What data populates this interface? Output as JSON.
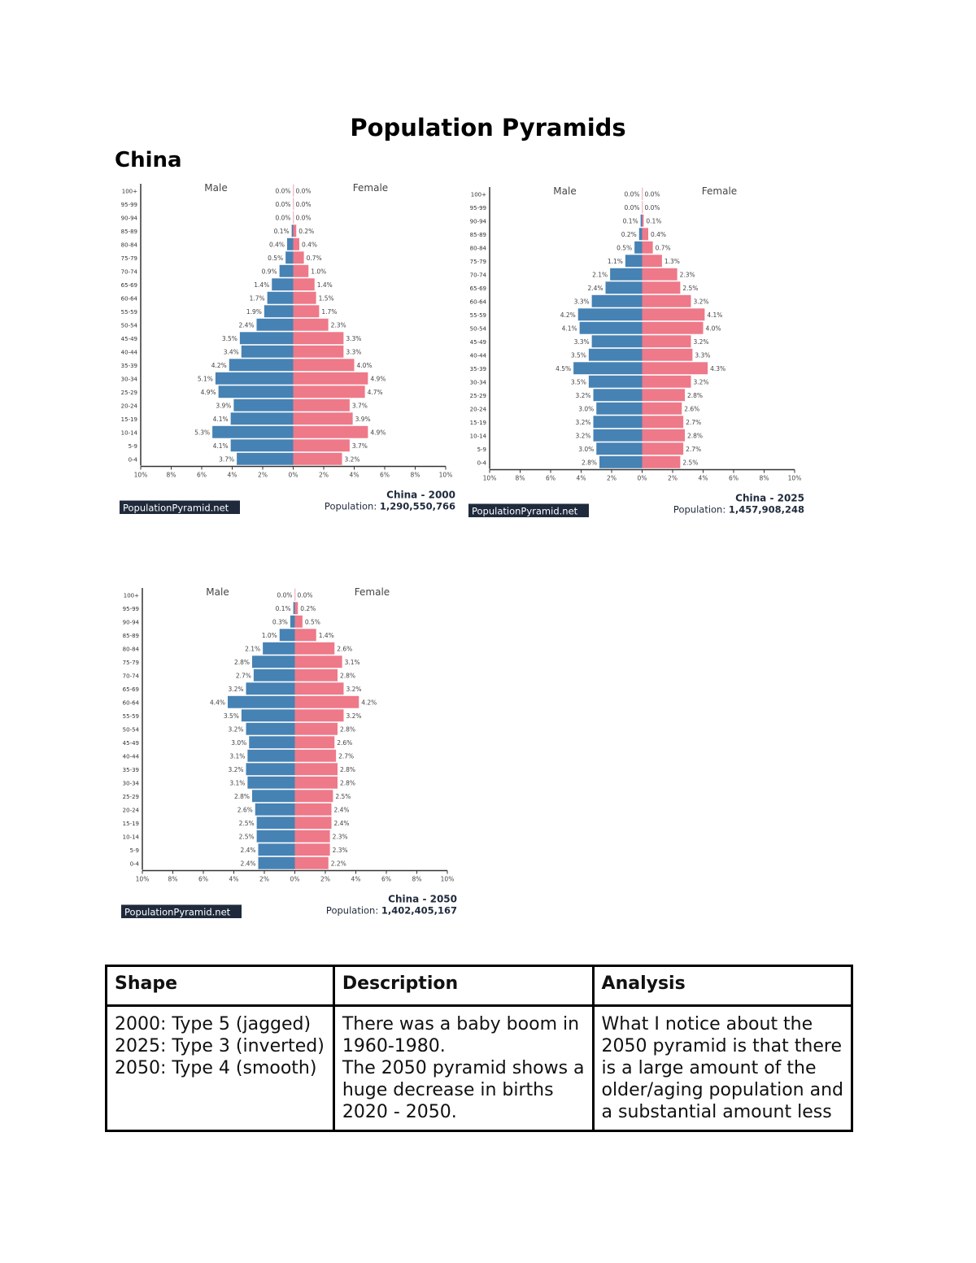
{
  "title": "Population Pyramids",
  "country": "China",
  "colors": {
    "male": "#4682b4",
    "female": "#ee7989",
    "logo_bg": "#1f2a3c"
  },
  "chart_data": [
    {
      "type": "bar",
      "subtype": "population-pyramid",
      "title": "China - 2000",
      "population_label": "Population:",
      "population": "1,290,550,766",
      "logo": "PopulationPyramid.net",
      "legend": [
        "Male",
        "Female"
      ],
      "age_groups": [
        "0-4",
        "5-9",
        "10-14",
        "15-19",
        "20-24",
        "25-29",
        "30-34",
        "35-39",
        "40-44",
        "45-49",
        "50-54",
        "55-59",
        "60-64",
        "65-69",
        "70-74",
        "75-79",
        "80-84",
        "85-89",
        "90-94",
        "95-99",
        "100+"
      ],
      "male": [
        3.7,
        4.1,
        5.3,
        4.1,
        3.9,
        4.9,
        5.1,
        4.2,
        3.4,
        3.5,
        2.4,
        1.9,
        1.7,
        1.4,
        0.9,
        0.5,
        0.4,
        0.1,
        0.0,
        0.0,
        0.0
      ],
      "female": [
        3.2,
        3.7,
        4.9,
        3.9,
        3.7,
        4.7,
        4.9,
        4.0,
        3.3,
        3.3,
        2.3,
        1.7,
        1.5,
        1.4,
        1.0,
        0.7,
        0.4,
        0.2,
        0.0,
        0.0,
        0.0
      ],
      "xticks": [
        "10%",
        "8%",
        "6%",
        "4%",
        "2%",
        "0%",
        "2%",
        "4%",
        "6%",
        "8%",
        "10%"
      ],
      "xlim": [
        -10,
        10
      ]
    },
    {
      "type": "bar",
      "subtype": "population-pyramid",
      "title": "China - 2025",
      "population_label": "Population:",
      "population": "1,457,908,248",
      "logo": "PopulationPyramid.net",
      "legend": [
        "Male",
        "Female"
      ],
      "age_groups": [
        "0-4",
        "5-9",
        "10-14",
        "15-19",
        "20-24",
        "25-29",
        "30-34",
        "35-39",
        "40-44",
        "45-49",
        "50-54",
        "55-59",
        "60-64",
        "65-69",
        "70-74",
        "75-79",
        "80-84",
        "85-89",
        "90-94",
        "95-99",
        "100+"
      ],
      "male": [
        2.8,
        3.0,
        3.2,
        3.2,
        3.0,
        3.2,
        3.5,
        4.5,
        3.5,
        3.3,
        4.1,
        4.2,
        3.3,
        2.4,
        2.1,
        1.1,
        0.5,
        0.2,
        0.1,
        0.0,
        0.0
      ],
      "female": [
        2.5,
        2.7,
        2.8,
        2.7,
        2.6,
        2.8,
        3.2,
        4.3,
        3.3,
        3.2,
        4.0,
        4.1,
        3.2,
        2.5,
        2.3,
        1.3,
        0.7,
        0.4,
        0.1,
        0.0,
        0.0
      ],
      "xticks": [
        "10%",
        "8%",
        "6%",
        "4%",
        "2%",
        "0%",
        "2%",
        "4%",
        "6%",
        "8%",
        "10%"
      ],
      "xlim": [
        -10,
        10
      ]
    },
    {
      "type": "bar",
      "subtype": "population-pyramid",
      "title": "China - 2050",
      "population_label": "Population:",
      "population": "1,402,405,167",
      "logo": "PopulationPyramid.net",
      "legend": [
        "Male",
        "Female"
      ],
      "age_groups": [
        "0-4",
        "5-9",
        "10-14",
        "15-19",
        "20-24",
        "25-29",
        "30-34",
        "35-39",
        "40-44",
        "45-49",
        "50-54",
        "55-59",
        "60-64",
        "65-69",
        "70-74",
        "75-79",
        "80-84",
        "85-89",
        "90-94",
        "95-99",
        "100+"
      ],
      "male": [
        2.4,
        2.4,
        2.5,
        2.5,
        2.6,
        2.8,
        3.1,
        3.2,
        3.1,
        3.0,
        3.2,
        3.5,
        4.4,
        3.2,
        2.7,
        2.8,
        2.1,
        1.0,
        0.3,
        0.1,
        0.0
      ],
      "female": [
        2.2,
        2.3,
        2.3,
        2.4,
        2.4,
        2.5,
        2.8,
        2.8,
        2.7,
        2.6,
        2.8,
        3.2,
        4.2,
        3.2,
        2.8,
        3.1,
        2.6,
        1.4,
        0.5,
        0.2,
        0.0
      ],
      "xticks": [
        "10%",
        "8%",
        "6%",
        "4%",
        "2%",
        "0%",
        "2%",
        "4%",
        "6%",
        "8%",
        "10%"
      ],
      "xlim": [
        -10,
        10
      ]
    }
  ],
  "table": {
    "headers": [
      "Shape",
      "Description",
      "Analysis"
    ],
    "cells": [
      [
        "2000: Type 5 (jagged)",
        "2025: Type 3 (inverted)",
        "2050: Type 4 (smooth)"
      ],
      [
        "There was a baby boom in",
        "1960-1980.",
        "The 2050 pyramid shows a",
        "huge decrease in births",
        "2020 - 2050."
      ],
      [
        "What I notice about the",
        "2050 pyramid is that there",
        "is a large amount of the",
        "older/aging population and",
        "a substantial amount less"
      ]
    ]
  }
}
